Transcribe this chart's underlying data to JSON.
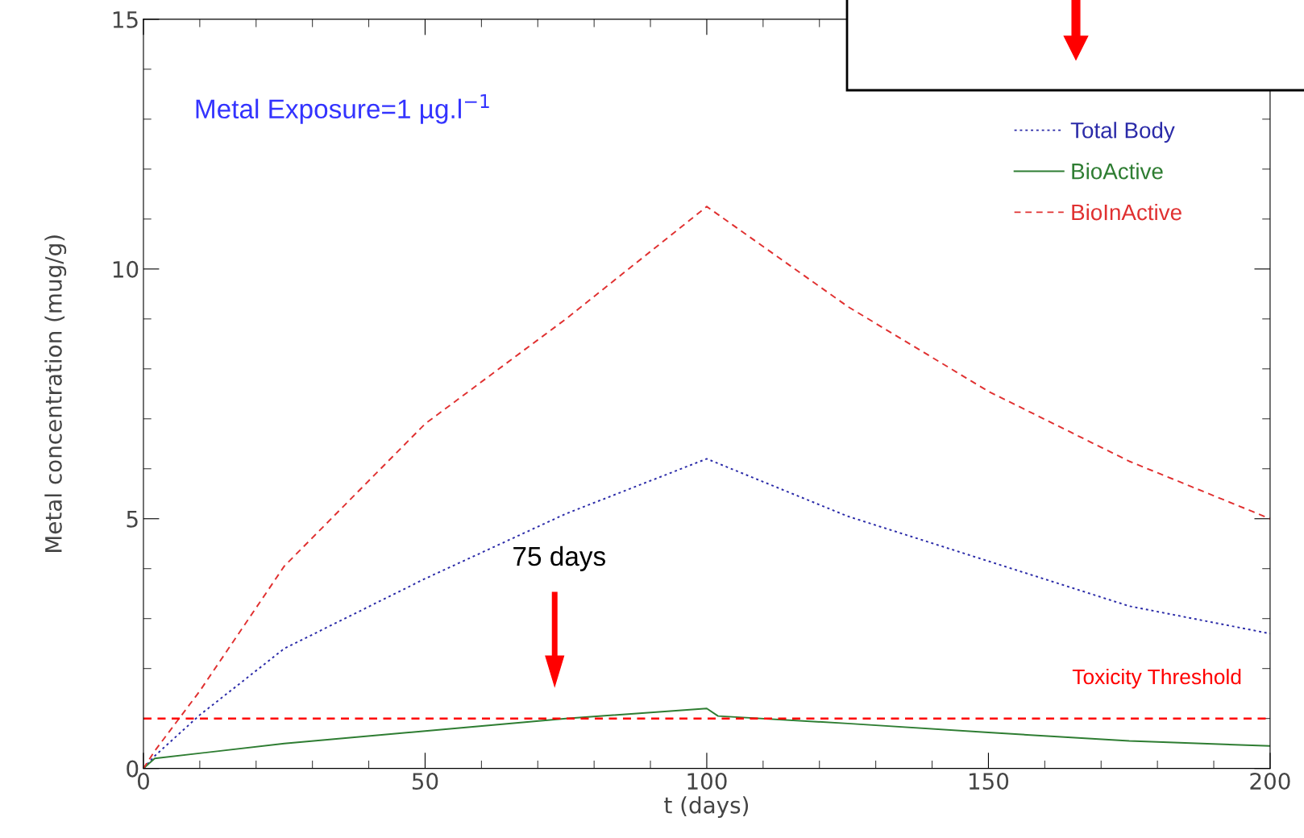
{
  "chart_data": {
    "type": "line",
    "xlabel": "t (days)",
    "ylabel": "Metal concentration (mug/g)",
    "xlim": [
      0,
      200
    ],
    "xticks": [
      0,
      50,
      100,
      150,
      200
    ],
    "ylim": [
      0,
      15
    ],
    "yticks": [
      0,
      5,
      10,
      15
    ],
    "series": [
      {
        "name": "Total Body",
        "color": "#2a2aa8",
        "line_style": "dotted",
        "x": [
          0,
          2,
          10,
          25,
          50,
          75,
          100,
          125,
          150,
          175,
          200
        ],
        "values": [
          0,
          0.25,
          1.07,
          2.4,
          3.8,
          5.1,
          6.2,
          5.05,
          4.15,
          3.25,
          2.7
        ]
      },
      {
        "name": "BioActive",
        "color": "#2e7d32",
        "line_style": "solid",
        "x": [
          0,
          2,
          25,
          50,
          75,
          100,
          102,
          125,
          150,
          175,
          200
        ],
        "values": [
          0,
          0.2,
          0.5,
          0.75,
          1.0,
          1.2,
          1.05,
          0.9,
          0.72,
          0.55,
          0.45
        ]
      },
      {
        "name": "BioInActive",
        "color": "#e03030",
        "line_style": "dashed",
        "x": [
          0,
          2,
          10,
          25,
          50,
          75,
          100,
          125,
          150,
          175,
          200
        ],
        "values": [
          0,
          0.35,
          1.55,
          4.05,
          6.9,
          9.0,
          11.25,
          9.25,
          7.55,
          6.15,
          5.0
        ]
      }
    ],
    "ref_lines": [
      {
        "axis": "y",
        "value": 1,
        "label": "Toxicity Threshold",
        "color": "#ff0000",
        "line_style": "dashed"
      }
    ],
    "annotations": [
      "Metal Exposure=1 µg.l$^{−1}$",
      "75 days"
    ],
    "legend": "top right",
    "grid": false
  }
}
